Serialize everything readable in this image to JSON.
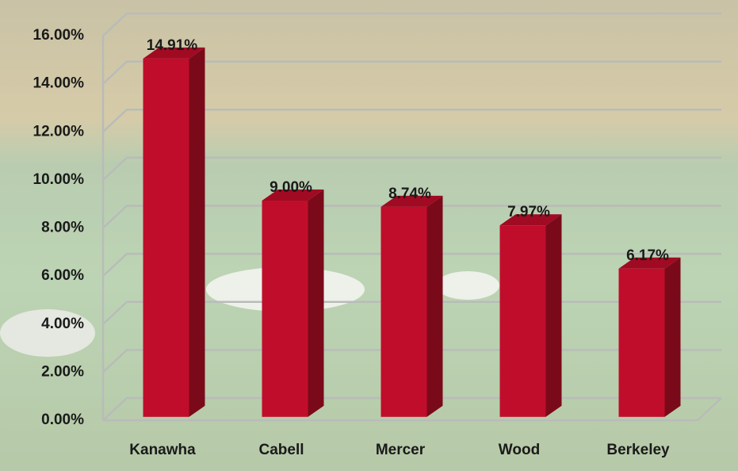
{
  "chart_data": {
    "type": "bar3d",
    "categories": [
      "Kanawha",
      "Cabell",
      "Mercer",
      "Wood",
      "Berkeley"
    ],
    "values": [
      14.91,
      9.0,
      8.74,
      7.97,
      6.17
    ],
    "value_labels": [
      "14.91%",
      "9.00%",
      "8.74%",
      "7.97%",
      "6.17%"
    ],
    "color": "#c00d2b",
    "ylim": [
      0,
      16
    ],
    "yticks": [
      {
        "value": 0,
        "label": "0.00%"
      },
      {
        "value": 2,
        "label": "2.00%"
      },
      {
        "value": 4,
        "label": "4.00%"
      },
      {
        "value": 6,
        "label": "6.00%"
      },
      {
        "value": 8,
        "label": "8.00%"
      },
      {
        "value": 10,
        "label": "10.00%"
      },
      {
        "value": 12,
        "label": "12.00%"
      },
      {
        "value": 14,
        "label": "14.00%"
      },
      {
        "value": 16,
        "label": "16.00%"
      }
    ],
    "grid": true
  }
}
